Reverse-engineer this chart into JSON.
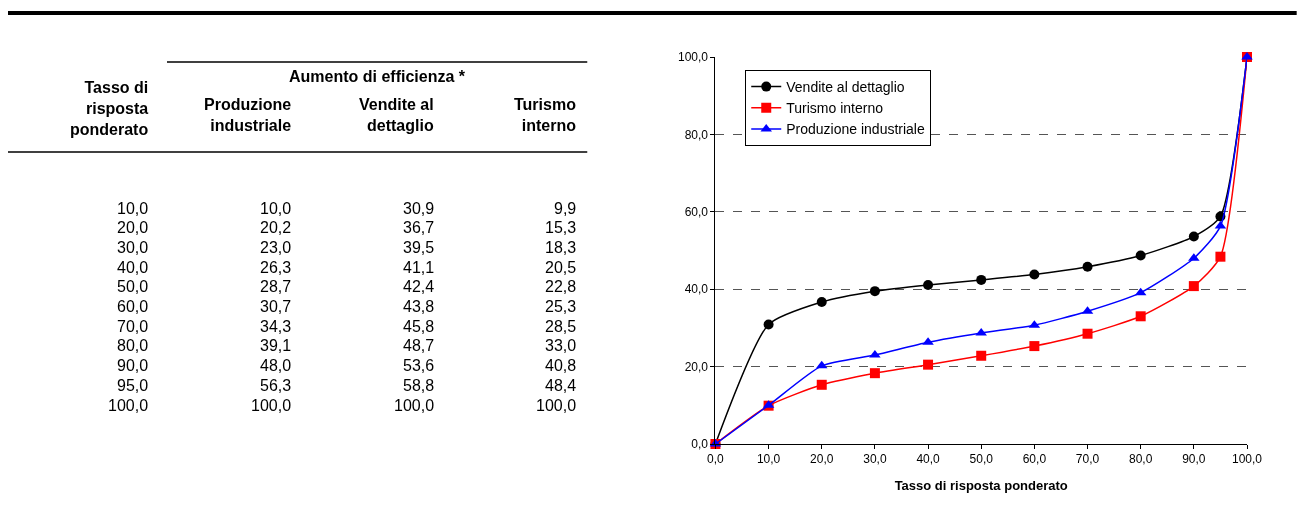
{
  "chart_data": [
    {
      "type": "other",
      "annotations": [
        "Aumento di efficienza *",
        "Tasso di\nrisposta\nponderato",
        "Produzione\nindustriale",
        "Vendite al\ndettaglio",
        "Turismo\ninterno",
        "10,0",
        "10,0",
        "30,9",
        "9,9",
        "20,0",
        "20,2",
        "36,7",
        "15,3",
        "30,0",
        "23,0",
        "39,5",
        "18,3",
        "40,0",
        "26,3",
        "41,1",
        "20,5",
        "50,0",
        "28,7",
        "42,4",
        "22,8",
        "60,0",
        "30,7",
        "43,8",
        "25,3",
        "70,0",
        "34,3",
        "45,8",
        "28,5",
        "80,0",
        "39,1",
        "48,7",
        "33,0",
        "90,0",
        "48,0",
        "53,6",
        "40,8",
        "95,0",
        "56,3",
        "58,8",
        "48,4",
        "100,0",
        "100,0",
        "100,0",
        "100,0"
      ]
    },
    {
      "type": "line",
      "xlabel": "Tasso di risposta ponderato",
      "x": [
        0,
        10,
        20,
        30,
        40,
        50,
        60,
        70,
        80,
        90,
        95,
        100
      ],
      "series": [
        {
          "name": "Vendite al dettaglio",
          "color": "#000000",
          "marker": "circle",
          "values": [
            0,
            30.9,
            36.7,
            39.5,
            41.1,
            42.4,
            43.8,
            45.8,
            48.7,
            53.6,
            58.8,
            100
          ]
        },
        {
          "name": "Turismo interno",
          "color": "#ff0000",
          "marker": "square",
          "values": [
            0,
            9.9,
            15.3,
            18.3,
            20.5,
            22.8,
            25.3,
            28.5,
            33.0,
            40.8,
            48.4,
            100
          ]
        },
        {
          "name": "Produzione industriale",
          "color": "#0000ff",
          "marker": "triangle",
          "values": [
            0,
            10.0,
            20.2,
            23.0,
            26.3,
            28.7,
            30.7,
            34.3,
            39.1,
            48.0,
            56.3,
            100
          ]
        }
      ],
      "xlim": [
        0,
        100
      ],
      "xticks": [
        {
          "value": 0,
          "label": "0,0"
        },
        {
          "value": 10,
          "label": "10,0"
        },
        {
          "value": 20,
          "label": "20,0"
        },
        {
          "value": 30,
          "label": "30,0"
        },
        {
          "value": 40,
          "label": "40,0"
        },
        {
          "value": 50,
          "label": "50,0"
        },
        {
          "value": 60,
          "label": "60,0"
        },
        {
          "value": 70,
          "label": "70,0"
        },
        {
          "value": 80,
          "label": "80,0"
        },
        {
          "value": 90,
          "label": "90,0"
        },
        {
          "value": 100,
          "label": "100,0"
        }
      ],
      "ylim": [
        0,
        100
      ],
      "yticks": [
        {
          "value": 0,
          "label": "0,0"
        },
        {
          "value": 20,
          "label": "20,0"
        },
        {
          "value": 40,
          "label": "40,0"
        },
        {
          "value": 60,
          "label": "60,0"
        },
        {
          "value": 80,
          "label": "80,0"
        },
        {
          "value": 100,
          "label": "100,0"
        }
      ],
      "grid": "y",
      "legend": "top left",
      "line_style": "solid"
    }
  ]
}
